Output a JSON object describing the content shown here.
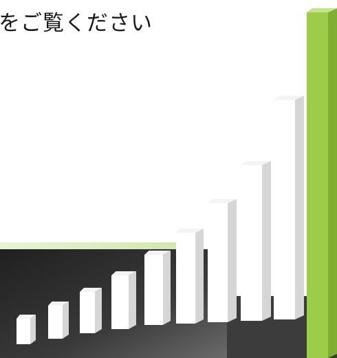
{
  "slide": {
    "heading": "をご覧ください"
  },
  "graphic": {
    "description_icon": "growth-bar-chart-graphic",
    "bar_count": 10,
    "accent_bar": "last",
    "colors": {
      "bar_front": "#ffffff",
      "bar_side": "#d6d6d6",
      "bar_top": "#f4f4f4",
      "accent_front": "#9ccc4a",
      "accent_side": "#7fae33",
      "accent_top": "#c4e48a",
      "floor_dark": "#2b2b2b",
      "floor_light": "#5a5a5a",
      "stripe": "#dff0c4"
    }
  }
}
